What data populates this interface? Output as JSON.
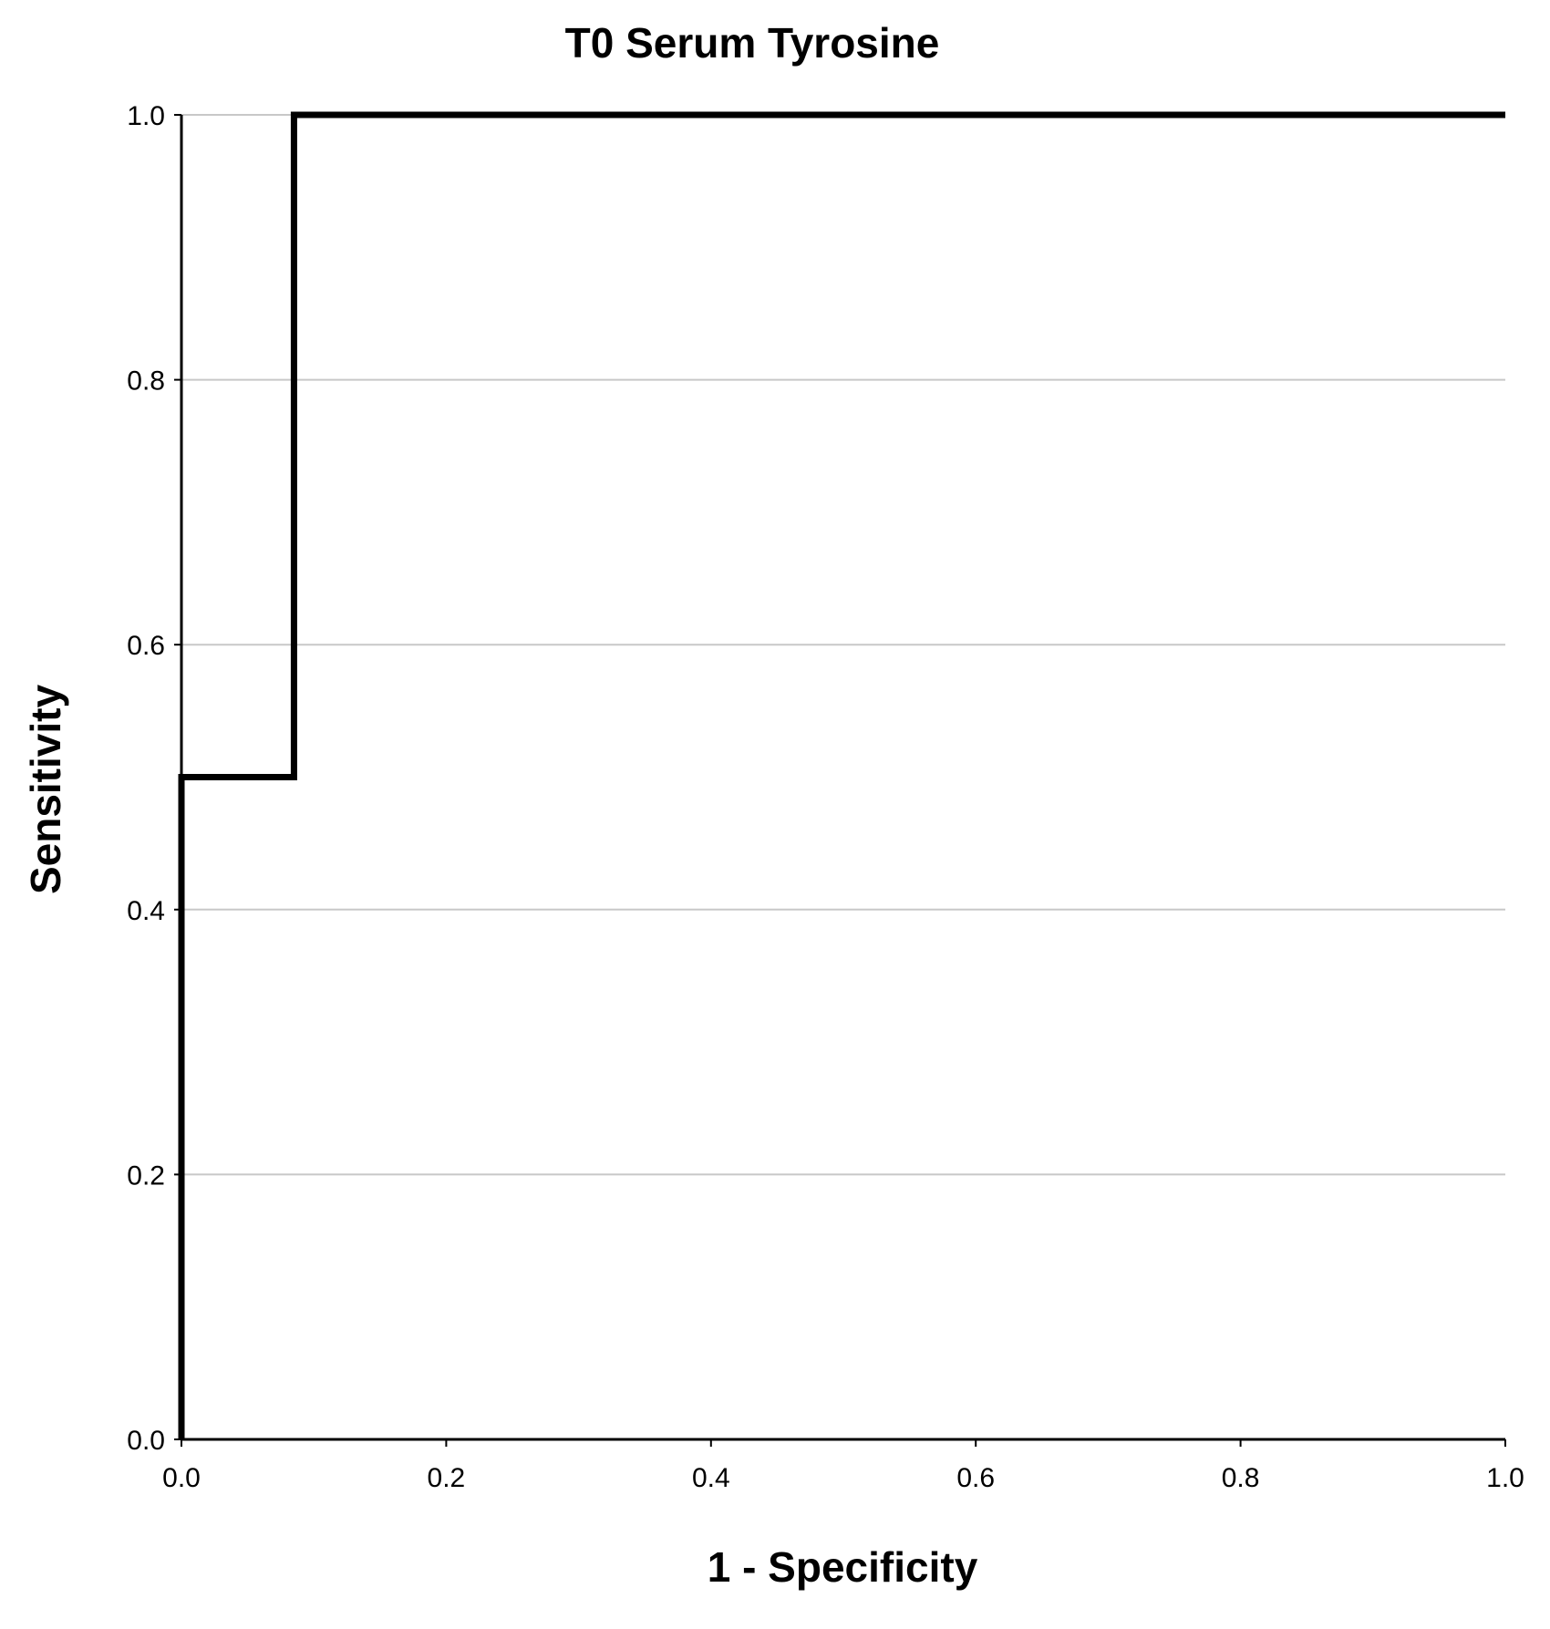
{
  "chart_data": {
    "type": "line",
    "title": "T0 Serum Tyrosine",
    "xlabel": "1 - Specificity",
    "ylabel": "Sensitivity",
    "xlim": [
      0,
      1
    ],
    "ylim": [
      0,
      1
    ],
    "x_ticks": [
      "0.0",
      "0.2",
      "0.4",
      "0.6",
      "0.8",
      "1.0"
    ],
    "y_ticks": [
      "0.0",
      "0.2",
      "0.4",
      "0.6",
      "0.8",
      "1.0"
    ],
    "grid": "horizontal",
    "series": [
      {
        "x": [
          0.0,
          0.0,
          0.085,
          0.085,
          1.0
        ],
        "y": [
          0.0,
          0.5,
          0.5,
          1.0,
          1.0
        ]
      }
    ],
    "colors": {
      "line": "#000000",
      "grid": "#c8c8c8",
      "axis": "#000000"
    }
  }
}
